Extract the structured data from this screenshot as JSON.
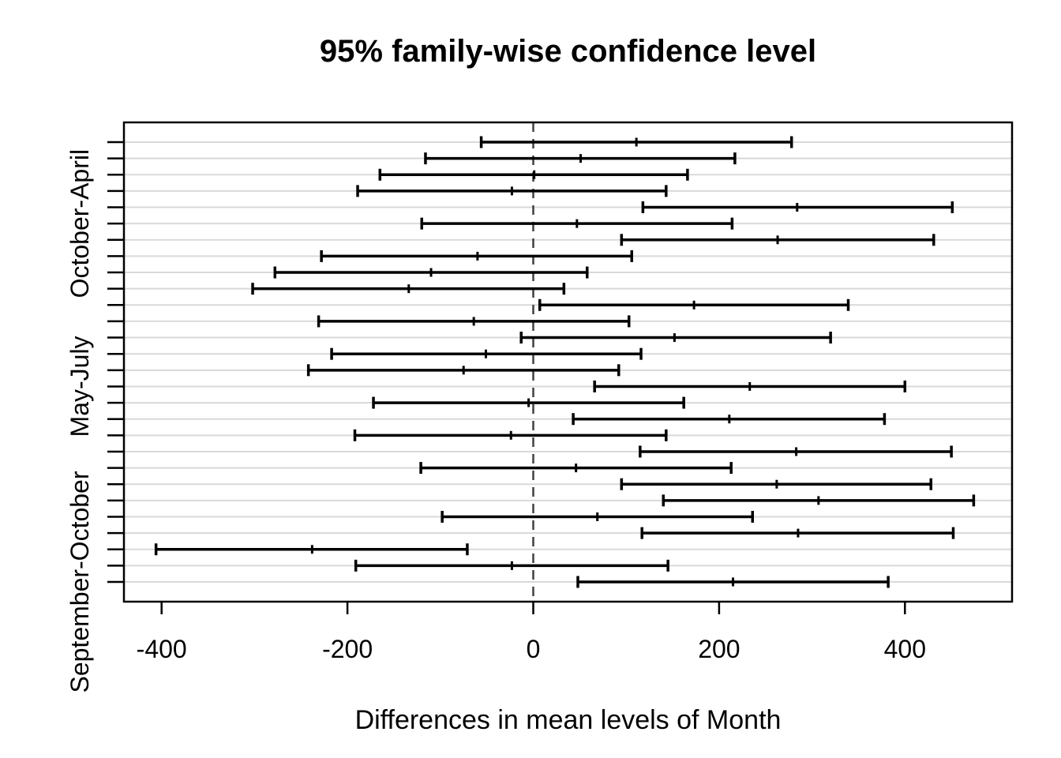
{
  "chart_data": {
    "type": "scatter",
    "subtype": "tukey-hsd-confidence-intervals",
    "title": "95% family-wise confidence level",
    "xlabel": "Differences in mean levels of Month",
    "orientation": "horizontal-intervals",
    "grid": "light-horizontal-line-per-row",
    "legend": "none",
    "xlim": [
      -441,
      509
    ],
    "x_ticks": [
      {
        "value": -400,
        "label": "-400"
      },
      {
        "value": -200,
        "label": "-200"
      },
      {
        "value": 0,
        "label": "0"
      },
      {
        "value": 200,
        "label": "200"
      },
      {
        "value": 400,
        "label": "400"
      }
    ],
    "zero_reference_line": {
      "x": 0,
      "style": "dashed"
    },
    "rows_total": 28,
    "y_axis_labels": [
      {
        "row": 6,
        "label": "October-April"
      },
      {
        "row": 16,
        "label": "May-July"
      },
      {
        "row": 28,
        "label": "September-October"
      }
    ],
    "intervals": [
      {
        "row": 1,
        "lower": -56,
        "center": 111,
        "upper": 278
      },
      {
        "row": 2,
        "lower": -116,
        "center": 51,
        "upper": 217
      },
      {
        "row": 3,
        "lower": -165,
        "center": 1,
        "upper": 166
      },
      {
        "row": 4,
        "lower": -189,
        "center": -23,
        "upper": 143
      },
      {
        "row": 5,
        "lower": 118,
        "center": 284,
        "upper": 451
      },
      {
        "row": 6,
        "lower": -120,
        "center": 47,
        "upper": 214
      },
      {
        "row": 7,
        "lower": 95,
        "center": 263,
        "upper": 431
      },
      {
        "row": 8,
        "lower": -228,
        "center": -60,
        "upper": 106
      },
      {
        "row": 9,
        "lower": -278,
        "center": -110,
        "upper": 58
      },
      {
        "row": 10,
        "lower": -302,
        "center": -134,
        "upper": 33
      },
      {
        "row": 11,
        "lower": 7,
        "center": 173,
        "upper": 339
      },
      {
        "row": 12,
        "lower": -231,
        "center": -64,
        "upper": 103
      },
      {
        "row": 13,
        "lower": -13,
        "center": 152,
        "upper": 320
      },
      {
        "row": 14,
        "lower": -217,
        "center": -51,
        "upper": 116
      },
      {
        "row": 15,
        "lower": -242,
        "center": -75,
        "upper": 92
      },
      {
        "row": 16,
        "lower": 66,
        "center": 233,
        "upper": 400
      },
      {
        "row": 17,
        "lower": -172,
        "center": -5,
        "upper": 162
      },
      {
        "row": 18,
        "lower": 43,
        "center": 211,
        "upper": 378
      },
      {
        "row": 19,
        "lower": -192,
        "center": -24,
        "upper": 143
      },
      {
        "row": 20,
        "lower": 115,
        "center": 283,
        "upper": 450
      },
      {
        "row": 21,
        "lower": -121,
        "center": 46,
        "upper": 213
      },
      {
        "row": 22,
        "lower": 95,
        "center": 262,
        "upper": 428
      },
      {
        "row": 23,
        "lower": 140,
        "center": 307,
        "upper": 474
      },
      {
        "row": 24,
        "lower": -98,
        "center": 69,
        "upper": 236
      },
      {
        "row": 25,
        "lower": 117,
        "center": 285,
        "upper": 452
      },
      {
        "row": 26,
        "lower": -406,
        "center": -238,
        "upper": -71
      },
      {
        "row": 27,
        "lower": -191,
        "center": -23,
        "upper": 145
      },
      {
        "row": 28,
        "lower": 48,
        "center": 215,
        "upper": 382
      }
    ]
  },
  "colors": {
    "background": "#ffffff",
    "interval": "#000000",
    "gridline": "#d9d9d9",
    "zero_line": "#404040",
    "border": "#000000",
    "text": "#000000"
  }
}
